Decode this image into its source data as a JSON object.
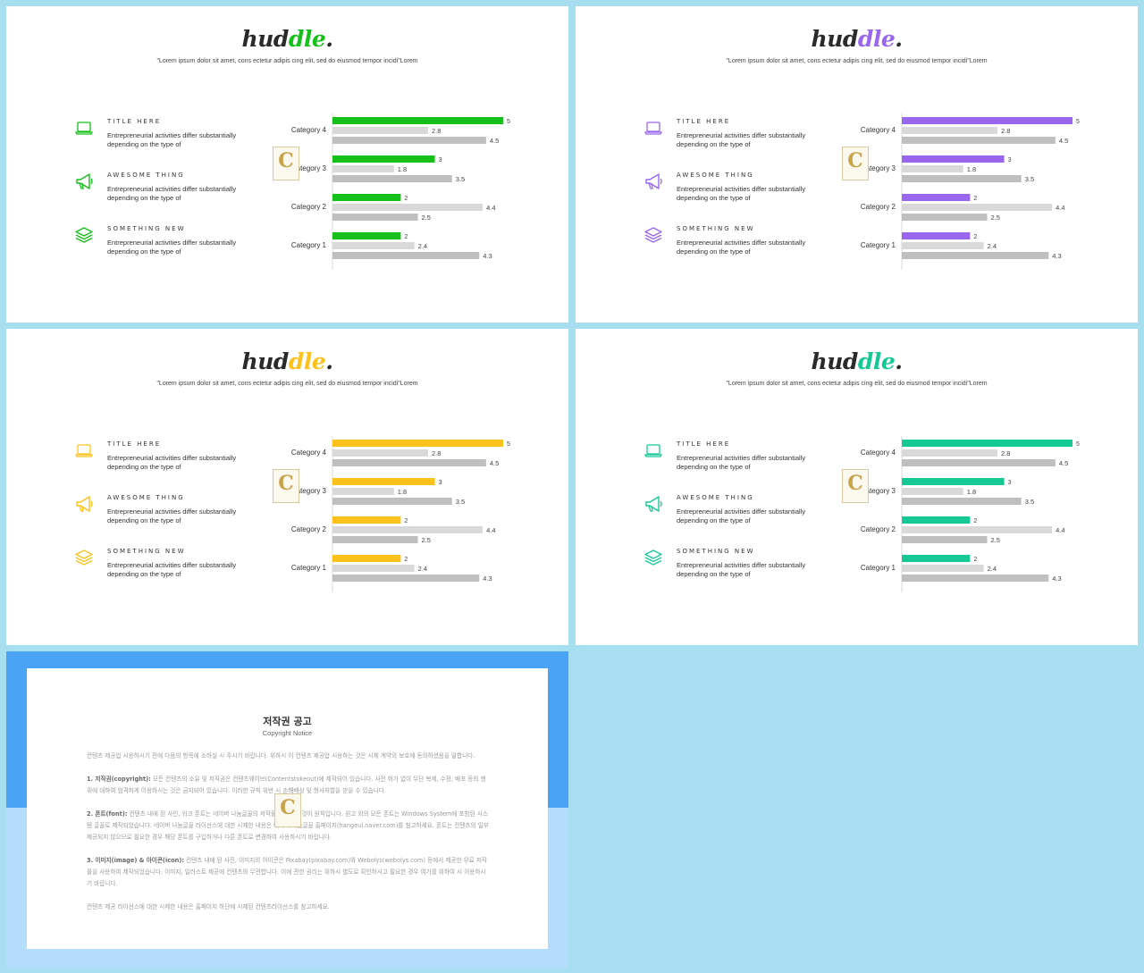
{
  "slides": [
    {
      "accent": "#15c01a"
    },
    {
      "accent": "#9966ee"
    },
    {
      "accent": "#fcc21b"
    },
    {
      "accent": "#17c897"
    }
  ],
  "logo": {
    "prefix": "hud",
    "accent_part": "dle",
    "suffix": "."
  },
  "quote": "\"Lorem ipsum dolor sit amet, cons ectetur adipis cing elit, sed do eiusmod tempor incidi\"Lorem",
  "features": [
    {
      "icon": "laptop-icon",
      "title": "TITLE HERE",
      "desc": "Entrepreneurial activities differ substantially depending on the type of"
    },
    {
      "icon": "megaphone-icon",
      "title": "AWESOME THING",
      "desc": "Entrepreneurial activities differ substantially depending on the type of"
    },
    {
      "icon": "layers-icon",
      "title": "SOMETHING NEW",
      "desc": "Entrepreneurial activities differ substantially depending on the type of"
    }
  ],
  "watermark_letter": "C",
  "chart_data": {
    "type": "bar",
    "orientation": "horizontal",
    "categories": [
      "Category 4",
      "Category 3",
      "Category 2",
      "Category 1"
    ],
    "series": [
      {
        "values": [
          5,
          3,
          2,
          2
        ],
        "color": "accent"
      },
      {
        "values": [
          2.8,
          1.8,
          4.4,
          2.4
        ],
        "color": "#d9d9d9"
      },
      {
        "values": [
          4.5,
          3.5,
          2.5,
          4.3
        ],
        "color": "#bfbfbf"
      }
    ],
    "xlim": [
      0,
      5
    ],
    "grid": false,
    "legend": "none"
  },
  "notice": {
    "title": "저작권 공고",
    "subtitle": "Copyright Notice",
    "intro": "컨텐츠 제공업 시용하시기 전에 다음의 항목에 소하실 시 주시기 바랍니다. 위하시 이 컨텐츠 제공업 시용하는 것은 시제 계약의 보호에 동의하셨음을 말합니다.",
    "p1_lead": "1. 저작권(copyright):",
    "p1_text": "모든 컨텐츠의 소유 및 저작권은 컨텐츠웨이브(Contentstokeout)에 제작되어 있습니다. 사전 허가 없이 무단 복제, 수정, 배포 등의 행위에 대하여 엄격하게 이용하시는 것은 금지되어 있습니다. 이러한 규칙 위반 시 손해배상 및 형사처벌을 받을 수 있습니다.",
    "p2_lead": "2. 폰트(font):",
    "p2_text": "컨텐츠 내에 된 사인, 워크 폰트는 네이버 나눔글꼴의 저작물을 따르는 것이 원칙입니다. 원고 외의 모든 폰트는 Windows System에 포함된 시스템 글꼴로 제작되었습니다. 네이버 나눔글꼴 라이선스에 대한 시제한 내용은 네이버 나눔글꼴 홈페이지(hangeul.naver.com)를 참고하세요. 폰트는 컨텐츠의 일부 제공되지 않으므로 필요한 경우 해당 폰트를 구입하거나 다른 폰트로 변경하여 사용하시기 바랍니다.",
    "p3_lead": "3. 이미지(image) & 아이콘(icon):",
    "p3_text": "컨텐츠 내에 된 사진, 이미지의 아이콘은 Pixabay(pixabay.com)와 Webolys(webolys.com) 등에서 제공한 무료 저작물을 사용하여 제작되었습니다. 이미지, 일러스트 제공에 컨텐츠와 무관합니다. 이에 관한 권리는 위하시 별도로 확인하시고 필요한 경우 여기를 위하여 시 이용하시기 바랍니다.",
    "outro": "컨텐츠 제공 라이선스에 대한 시제한 내용은 홈페이지 하단에 시제된 컨텐츠라이선스를 참고하세요."
  }
}
